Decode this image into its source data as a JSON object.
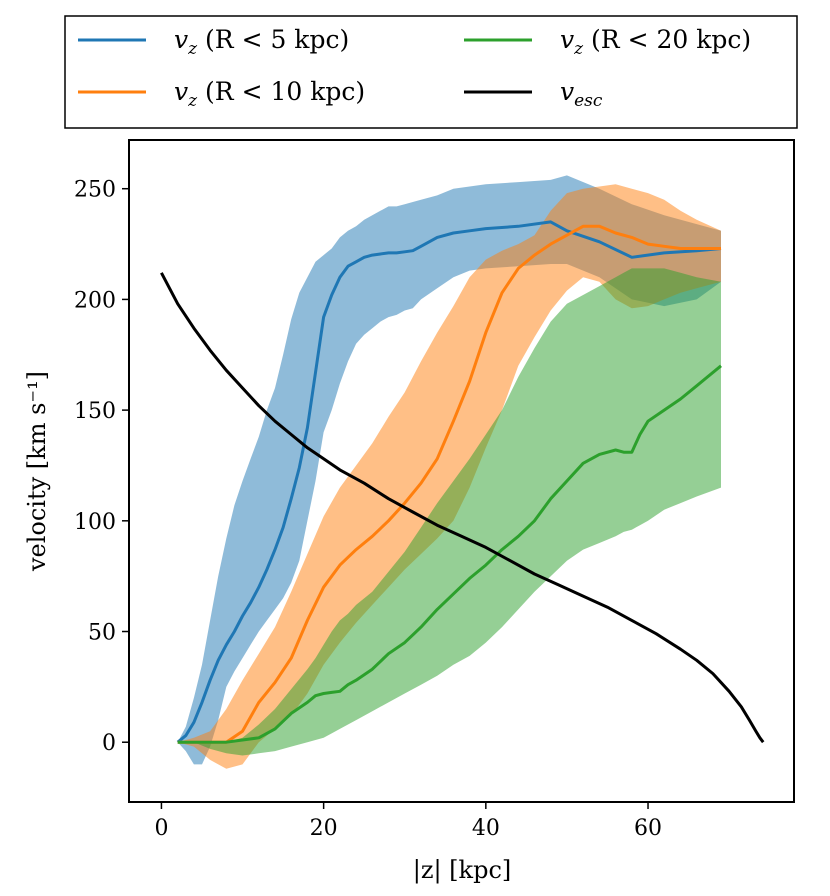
{
  "chart_data": {
    "type": "line",
    "xlabel": "|z| [kpc]",
    "ylabel": "velocity [km s⁻¹]",
    "xlim": [
      -4,
      78
    ],
    "ylim": [
      -27,
      272
    ],
    "xticks": [
      0,
      20,
      40,
      60
    ],
    "yticks": [
      0,
      50,
      100,
      150,
      200,
      250
    ],
    "grid": false,
    "legend_position": "top, above plot",
    "legend": [
      {
        "key": "vz_R5",
        "prefix": "v",
        "sub": "z",
        "suffix": " (R < 5 kpc)"
      },
      {
        "key": "vz_R10",
        "prefix": "v",
        "sub": "z",
        "suffix": " (R < 10 kpc)"
      },
      {
        "key": "vz_R20",
        "prefix": "v",
        "sub": "z",
        "suffix": " (R < 20 kpc)"
      },
      {
        "key": "vesc",
        "prefix": "v",
        "sub": "esc",
        "suffix": ""
      }
    ],
    "series": [
      {
        "key": "vz_R5",
        "color": "#1f77b4",
        "x": [
          2,
          3,
          4,
          5,
          6,
          7,
          8,
          9,
          10,
          11,
          12,
          13,
          14,
          15,
          16,
          17,
          18,
          19,
          20,
          21,
          22,
          23,
          24,
          25,
          26,
          27,
          28,
          29,
          30,
          31,
          32,
          34,
          36,
          38,
          40,
          44,
          48,
          50,
          54,
          58,
          62,
          66,
          69
        ],
        "y": [
          0,
          3,
          9,
          18,
          28,
          37,
          44,
          50,
          57,
          63,
          70,
          78,
          87,
          97,
          110,
          124,
          142,
          167,
          192,
          202,
          210,
          215,
          217,
          219,
          220,
          220.5,
          221,
          221,
          221.5,
          222,
          224,
          228,
          230,
          231,
          232,
          233,
          235,
          231,
          226,
          219,
          221,
          222,
          223
        ],
        "lower": [
          0,
          -4,
          -10,
          -10,
          -2,
          10,
          25,
          32,
          38,
          44,
          50,
          55,
          60,
          65,
          72,
          82,
          100,
          118,
          140,
          150,
          162,
          172,
          180,
          184,
          187,
          190,
          192,
          193,
          195,
          196,
          200,
          205,
          210,
          213,
          214,
          215,
          216,
          216,
          210,
          200,
          197,
          200,
          208
        ],
        "upper": [
          0,
          7,
          20,
          35,
          55,
          75,
          92,
          107,
          118,
          128,
          138,
          150,
          160,
          175,
          191,
          203,
          210,
          217,
          220,
          223,
          228,
          231,
          233,
          236,
          238,
          240,
          242,
          242,
          243,
          244,
          245,
          247,
          250,
          251,
          252,
          253,
          254,
          256,
          250,
          243,
          238,
          234,
          231
        ]
      },
      {
        "key": "vz_R10",
        "color": "#ff7f0e",
        "x": [
          2,
          4,
          6,
          8,
          10,
          12,
          14,
          16,
          18,
          20,
          22,
          24,
          26,
          28,
          30,
          32,
          34,
          36,
          38,
          40,
          42,
          44,
          46,
          48,
          50,
          52,
          54,
          56,
          58,
          60,
          62,
          64,
          66,
          69
        ],
        "y": [
          0,
          0,
          0,
          0,
          5,
          18,
          27,
          38,
          55,
          70,
          80,
          87,
          93,
          100,
          108,
          117,
          128,
          145,
          163,
          185,
          203,
          214,
          220,
          225,
          229,
          233,
          233,
          230,
          228,
          225,
          224,
          223,
          223,
          223
        ],
        "lower": [
          0,
          -2,
          -8,
          -12,
          -10,
          0,
          6,
          12,
          22,
          35,
          45,
          54,
          62,
          70,
          78,
          85,
          92,
          100,
          115,
          133,
          150,
          170,
          183,
          195,
          204,
          210,
          208,
          200,
          196,
          197,
          200,
          203,
          205,
          208
        ],
        "upper": [
          0,
          2,
          5,
          15,
          28,
          40,
          52,
          68,
          85,
          102,
          115,
          125,
          135,
          147,
          158,
          172,
          185,
          197,
          210,
          218,
          222,
          225,
          229,
          240,
          248,
          250,
          251,
          252,
          250,
          248,
          245,
          240,
          236,
          231
        ]
      },
      {
        "key": "vz_R20",
        "color": "#2ca02c",
        "x": [
          2,
          4,
          6,
          8,
          10,
          12,
          14,
          16,
          18,
          19,
          20,
          21,
          22,
          23,
          24,
          26,
          28,
          30,
          32,
          34,
          36,
          38,
          40,
          42,
          44,
          46,
          48,
          50,
          52,
          54,
          56,
          57,
          58,
          59,
          60,
          62,
          64,
          66,
          69
        ],
        "y": [
          0,
          0,
          0,
          0,
          1,
          2,
          6,
          13,
          18,
          21,
          22,
          22.5,
          23,
          26,
          28,
          33,
          40,
          45,
          52,
          60,
          67,
          74,
          80,
          87,
          93,
          100,
          110,
          118,
          126,
          130,
          132,
          131,
          131,
          139,
          145,
          150,
          155,
          161,
          170
        ],
        "lower": [
          0,
          0,
          -3,
          -5,
          -6,
          -5,
          -4,
          -2,
          0,
          1,
          2,
          4,
          6,
          8,
          10,
          14,
          18,
          22,
          26,
          30,
          35,
          39,
          45,
          52,
          60,
          68,
          75,
          82,
          87,
          90,
          93,
          95,
          96,
          98,
          100,
          105,
          108,
          111,
          115
        ],
        "upper": [
          0,
          0,
          0,
          0,
          2,
          8,
          15,
          24,
          33,
          38,
          44,
          50,
          55,
          58,
          62,
          68,
          77,
          86,
          97,
          108,
          118,
          128,
          139,
          150,
          165,
          178,
          190,
          198,
          202,
          206,
          210,
          212,
          214,
          214,
          214,
          214,
          212,
          210,
          208
        ]
      },
      {
        "key": "vesc",
        "color": "#000000",
        "x": [
          0,
          2,
          4,
          6,
          8,
          10,
          12,
          14,
          16,
          18,
          20,
          22,
          25,
          28,
          31,
          34,
          37,
          40,
          43,
          46,
          49,
          52,
          55,
          58,
          61,
          64,
          66,
          68,
          70,
          71.5,
          72.5,
          73.3,
          73.8,
          74.2
        ],
        "y": [
          212,
          198,
          187,
          177,
          168,
          160,
          152,
          145,
          139,
          133,
          128,
          123,
          117,
          110,
          104,
          98,
          93,
          88,
          82,
          76,
          71,
          66,
          61,
          55,
          49,
          42,
          37,
          31,
          23,
          16,
          10,
          5,
          2,
          0
        ]
      }
    ]
  }
}
